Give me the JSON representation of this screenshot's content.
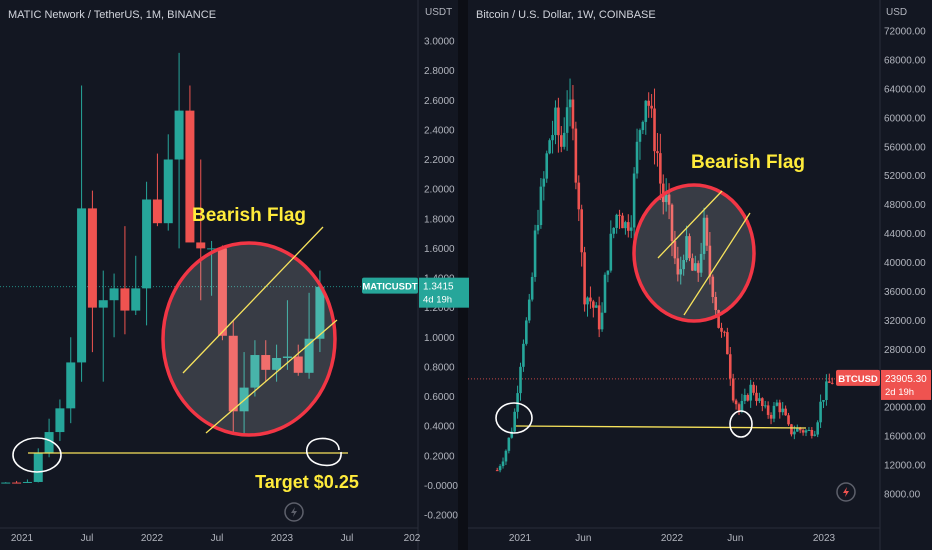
{
  "chart_data": [
    {
      "type": "candlestick",
      "title": "MATIC Network / TetherUS, 1M, BINANCE",
      "unit": "USDT",
      "ylim": [
        -0.25,
        3.1
      ],
      "y_ticks": [
        "3.0000",
        "2.8000",
        "2.6000",
        "2.4000",
        "2.2000",
        "2.0000",
        "1.8000",
        "1.6000",
        "1.4000",
        "1.2000",
        "1.0000",
        "0.8000",
        "0.6000",
        "0.4000",
        "0.2000",
        "-0.0000",
        "-0.2000"
      ],
      "y_tick_values": [
        3.0,
        2.8,
        2.6,
        2.4,
        2.2,
        2.0,
        1.8,
        1.6,
        1.4,
        1.2,
        1.0,
        0.8,
        0.6,
        0.4,
        0.2,
        0.0,
        -0.2
      ],
      "x_ticks": [
        "2021",
        "Jul",
        "2022",
        "Jul",
        "2023",
        "Jul",
        "202"
      ],
      "x_tick_months": [
        0,
        6,
        12,
        18,
        24,
        30,
        36
      ],
      "x_range_months": [
        -2.0,
        37.5
      ],
      "candles_by_month": [
        {
          "m": -1.5,
          "o": 0.018,
          "h": 0.022,
          "l": 0.014,
          "c": 0.019
        },
        {
          "m": -0.5,
          "o": 0.019,
          "h": 0.03,
          "l": 0.015,
          "c": 0.018
        },
        {
          "m": 0.5,
          "o": 0.018,
          "h": 0.04,
          "l": 0.017,
          "c": 0.023
        },
        {
          "m": 1.5,
          "o": 0.023,
          "h": 0.25,
          "l": 0.02,
          "c": 0.22
        },
        {
          "m": 2.5,
          "o": 0.22,
          "h": 0.45,
          "l": 0.19,
          "c": 0.36
        },
        {
          "m": 3.5,
          "o": 0.36,
          "h": 0.58,
          "l": 0.3,
          "c": 0.52
        },
        {
          "m": 4.5,
          "o": 0.52,
          "h": 1.0,
          "l": 0.42,
          "c": 0.83
        },
        {
          "m": 5.5,
          "o": 0.83,
          "h": 2.7,
          "l": 0.7,
          "c": 1.87
        },
        {
          "m": 6.5,
          "o": 1.87,
          "h": 1.99,
          "l": 0.9,
          "c": 1.2
        },
        {
          "m": 7.5,
          "o": 1.2,
          "h": 1.45,
          "l": 0.7,
          "c": 1.25
        },
        {
          "m": 8.5,
          "o": 1.25,
          "h": 1.43,
          "l": 1.0,
          "c": 1.33
        },
        {
          "m": 9.5,
          "o": 1.33,
          "h": 1.75,
          "l": 1.02,
          "c": 1.18
        },
        {
          "m": 10.5,
          "o": 1.18,
          "h": 1.55,
          "l": 1.15,
          "c": 1.33
        },
        {
          "m": 11.5,
          "o": 1.33,
          "h": 2.05,
          "l": 1.08,
          "c": 1.93
        },
        {
          "m": 12.5,
          "o": 1.93,
          "h": 2.24,
          "l": 1.75,
          "c": 1.77
        },
        {
          "m": 13.5,
          "o": 1.77,
          "h": 2.37,
          "l": 1.72,
          "c": 2.2
        },
        {
          "m": 14.5,
          "o": 2.2,
          "h": 2.92,
          "l": 1.6,
          "c": 2.53
        },
        {
          "m": 15.5,
          "o": 2.53,
          "h": 2.7,
          "l": 1.66,
          "c": 1.64
        },
        {
          "m": 16.5,
          "o": 1.64,
          "h": 2.2,
          "l": 1.25,
          "c": 1.6
        },
        {
          "m": 17.5,
          "o": 1.6,
          "h": 1.65,
          "l": 1.28,
          "c": 1.6
        },
        {
          "m": 18.5,
          "o": 1.6,
          "h": 1.62,
          "l": 0.98,
          "c": 1.01
        },
        {
          "m": 19.5,
          "o": 1.01,
          "h": 1.11,
          "l": 0.36,
          "c": 0.5
        },
        {
          "m": 20.5,
          "o": 0.5,
          "h": 0.9,
          "l": 0.33,
          "c": 0.66
        },
        {
          "m": 21.5,
          "o": 0.66,
          "h": 0.98,
          "l": 0.6,
          "c": 0.88
        },
        {
          "m": 22.5,
          "o": 0.88,
          "h": 0.98,
          "l": 0.7,
          "c": 0.78
        },
        {
          "m": 23.5,
          "o": 0.78,
          "h": 0.95,
          "l": 0.7,
          "c": 0.86
        },
        {
          "m": 24.5,
          "o": 0.86,
          "h": 1.25,
          "l": 0.78,
          "c": 0.87
        },
        {
          "m": 25.5,
          "o": 0.87,
          "h": 0.95,
          "l": 0.74,
          "c": 0.76
        },
        {
          "m": 26.5,
          "o": 0.76,
          "h": 1.3,
          "l": 0.72,
          "c": 0.99
        },
        {
          "m": 27.5,
          "o": 0.99,
          "h": 1.45,
          "l": 0.9,
          "c": 1.34
        }
      ],
      "annotations": [
        "Bearish Flag",
        "Target $0.25"
      ],
      "price_label": {
        "name": "MATICUSDT",
        "value": "1.3415",
        "countdown": "4d 19h",
        "price": 1.3415
      }
    },
    {
      "type": "candlestick",
      "title": "Bitcoin / U.S. Dollar, 1W, COINBASE",
      "unit": "USD",
      "ylim": [
        6200,
        74000
      ],
      "y_ticks": [
        "72000.00",
        "68000.00",
        "64000.00",
        "60000.00",
        "56000.00",
        "52000.00",
        "48000.00",
        "44000.00",
        "40000.00",
        "36000.00",
        "32000.00",
        "28000.00",
        "20000.00",
        "16000.00",
        "12000.00",
        "8000.00"
      ],
      "y_tick_values": [
        72000,
        68000,
        64000,
        60000,
        56000,
        52000,
        48000,
        44000,
        40000,
        36000,
        32000,
        28000,
        20000,
        16000,
        12000,
        8000
      ],
      "x_ticks": [
        "2021",
        "Jun",
        "2022",
        "Jun",
        "2023"
      ],
      "x_tick_months": [
        0,
        5,
        12,
        17,
        24
      ],
      "x_range_months": [
        -2.0,
        26.0
      ],
      "weekly_close_anchors": [
        [
          -1.8,
          11300
        ],
        [
          -1.2,
          13500
        ],
        [
          -0.5,
          18000
        ],
        [
          0.2,
          29000
        ],
        [
          0.8,
          34000
        ],
        [
          1.3,
          46000
        ],
        [
          1.8,
          50000
        ],
        [
          2.3,
          57000
        ],
        [
          2.8,
          59000
        ],
        [
          3.3,
          56000
        ],
        [
          3.7,
          63000
        ],
        [
          4.2,
          57000
        ],
        [
          4.6,
          50000
        ],
        [
          5.0,
          36000
        ],
        [
          5.5,
          35000
        ],
        [
          6.0,
          33000
        ],
        [
          6.4,
          31000
        ],
        [
          6.8,
          39000
        ],
        [
          7.3,
          44000
        ],
        [
          7.8,
          48000
        ],
        [
          8.3,
          45000
        ],
        [
          8.8,
          47000
        ],
        [
          9.2,
          55000
        ],
        [
          9.6,
          61000
        ],
        [
          10.0,
          64000
        ],
        [
          10.4,
          59000
        ],
        [
          10.8,
          56000
        ],
        [
          11.2,
          49000
        ],
        [
          11.6,
          48000
        ],
        [
          12.1,
          42000
        ],
        [
          12.5,
          37000
        ],
        [
          13.0,
          43000
        ],
        [
          13.5,
          39000
        ],
        [
          14.0,
          38000
        ],
        [
          14.5,
          45000
        ],
        [
          14.9,
          39000
        ],
        [
          15.3,
          36000
        ],
        [
          15.8,
          30000
        ],
        [
          16.3,
          29000
        ],
        [
          16.8,
          22000
        ],
        [
          17.3,
          19500
        ],
        [
          17.8,
          21000
        ],
        [
          18.3,
          23000
        ],
        [
          18.8,
          21000
        ],
        [
          19.3,
          19500
        ],
        [
          19.8,
          19000
        ],
        [
          20.3,
          20500
        ],
        [
          20.8,
          19200
        ],
        [
          21.3,
          16500
        ],
        [
          21.8,
          17000
        ],
        [
          22.3,
          16800
        ],
        [
          22.8,
          16600
        ],
        [
          23.3,
          17000
        ],
        [
          23.8,
          21000
        ],
        [
          24.3,
          23000
        ],
        [
          24.8,
          23900
        ]
      ],
      "annotations": [
        "Bearish Flag"
      ],
      "price_label": {
        "name": "BTCUSD",
        "value": "23905.30",
        "countdown": "2d 19h",
        "price": 23905.3
      }
    }
  ],
  "colors": {
    "background": "#131722",
    "bull": "#26a69a",
    "bear": "#ef5350",
    "axis_text": "#b2b5be",
    "annotation_yellow": "#ffeb3b",
    "ellipse_red": "#f23645",
    "trendline": "#f7e35c"
  }
}
